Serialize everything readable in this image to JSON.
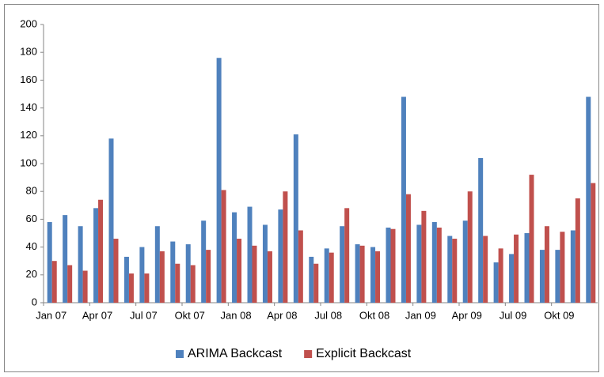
{
  "chart_data": {
    "type": "bar",
    "categories": [
      "Jan 07",
      null,
      null,
      "Apr 07",
      null,
      null,
      "Jul 07",
      null,
      null,
      "Okt 07",
      null,
      null,
      "Jan 08",
      null,
      null,
      "Apr 08",
      null,
      null,
      "Jul 08",
      null,
      null,
      "Okt 08",
      null,
      null,
      "Jan 09",
      null,
      null,
      "Apr 09",
      null,
      null,
      "Jul 09",
      null,
      null,
      "Okt 09",
      null,
      null
    ],
    "series": [
      {
        "name": "ARIMA Backcast",
        "color": "#4f81bd",
        "values": [
          58,
          63,
          55,
          68,
          118,
          33,
          40,
          55,
          44,
          42,
          59,
          176,
          65,
          69,
          56,
          67,
          121,
          33,
          39,
          55,
          42,
          40,
          54,
          148,
          56,
          58,
          48,
          59,
          104,
          29,
          35,
          50,
          38,
          38,
          52,
          148
        ]
      },
      {
        "name": "Explicit Backcast",
        "color": "#c0504d",
        "values": [
          30,
          27,
          23,
          74,
          46,
          21,
          21,
          37,
          28,
          27,
          38,
          81,
          46,
          41,
          37,
          80,
          52,
          28,
          36,
          68,
          41,
          37,
          53,
          78,
          66,
          54,
          46,
          80,
          48,
          39,
          49,
          92,
          55,
          51,
          75,
          86
        ]
      }
    ],
    "ylim": [
      0,
      200
    ],
    "yticks": [
      0,
      20,
      40,
      60,
      80,
      100,
      120,
      140,
      160,
      180,
      200
    ],
    "grid": false,
    "legend": "bottom"
  }
}
